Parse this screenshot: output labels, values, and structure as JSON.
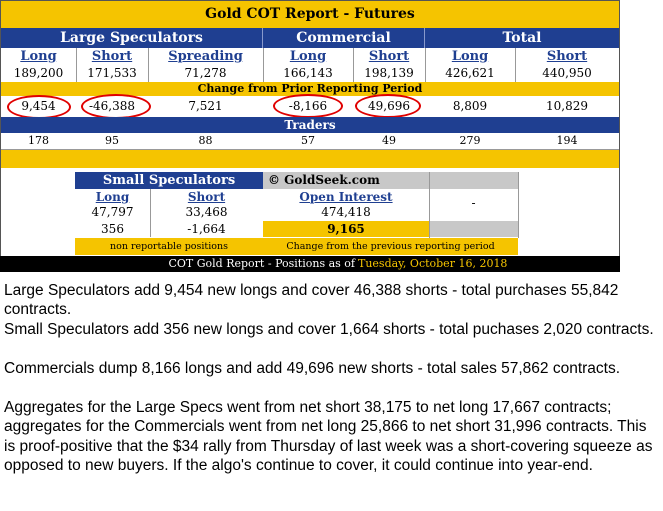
{
  "report": {
    "title": "Gold COT Report - Futures",
    "groups": {
      "large": "Large Speculators",
      "commercial": "Commercial",
      "total": "Total"
    },
    "columns": [
      "Long",
      "Short",
      "Spreading",
      "Long",
      "Short",
      "Long",
      "Short"
    ],
    "values": [
      "189,200",
      "171,533",
      "71,278",
      "166,143",
      "198,139",
      "426,621",
      "440,950"
    ],
    "change_title": "Change from Prior Reporting Period",
    "changes": [
      "9,454",
      "-46,388",
      "7,521",
      "-8,166",
      "49,696",
      "8,809",
      "10,829"
    ],
    "traders_title": "Traders",
    "traders": [
      "178",
      "95",
      "88",
      "57",
      "49",
      "279",
      "194"
    ],
    "small": {
      "title": "Small Speculators",
      "long_label": "Long",
      "short_label": "Short",
      "long_value": "47,797",
      "short_value": "33,468",
      "long_change": "356",
      "short_change": "-1,664",
      "note": "non reportable positions"
    },
    "watermark": "© GoldSeek.com",
    "open_interest": {
      "label": "Open Interest",
      "value": "474,418",
      "change": "9,165",
      "note": "Change from the previous reporting period"
    },
    "dash": "-",
    "footer_label": "COT Gold Report - Positions as of",
    "footer_date": "Tuesday, October 16, 2018"
  },
  "commentary": [
    "Large Speculators add 9,454 new longs and cover 46,388 shorts - total purchases 55,842 contracts.",
    "Small Speculators add 356 new longs and cover 1,664 shorts - total puchases 2,020 contracts.",
    "Commercials dump 8,166 longs and add 49,696 new shorts - total sales 57,862 contracts.",
    "Aggregates for the Large Specs went from net short 38,175 to net long 17,667 contracts; aggregates for the Commercials went from net long 25,866 to net short 31,996 contracts. This is proof-positive that the $34 rally from Thursday of last week  was a short-covering squeeze as opposed to new buyers. If the algo's continue to cover, it could continue into year-end."
  ],
  "colors": {
    "gold": "#f5c400",
    "navy": "#1f3f91",
    "red": "#e00000",
    "black": "#000000"
  }
}
